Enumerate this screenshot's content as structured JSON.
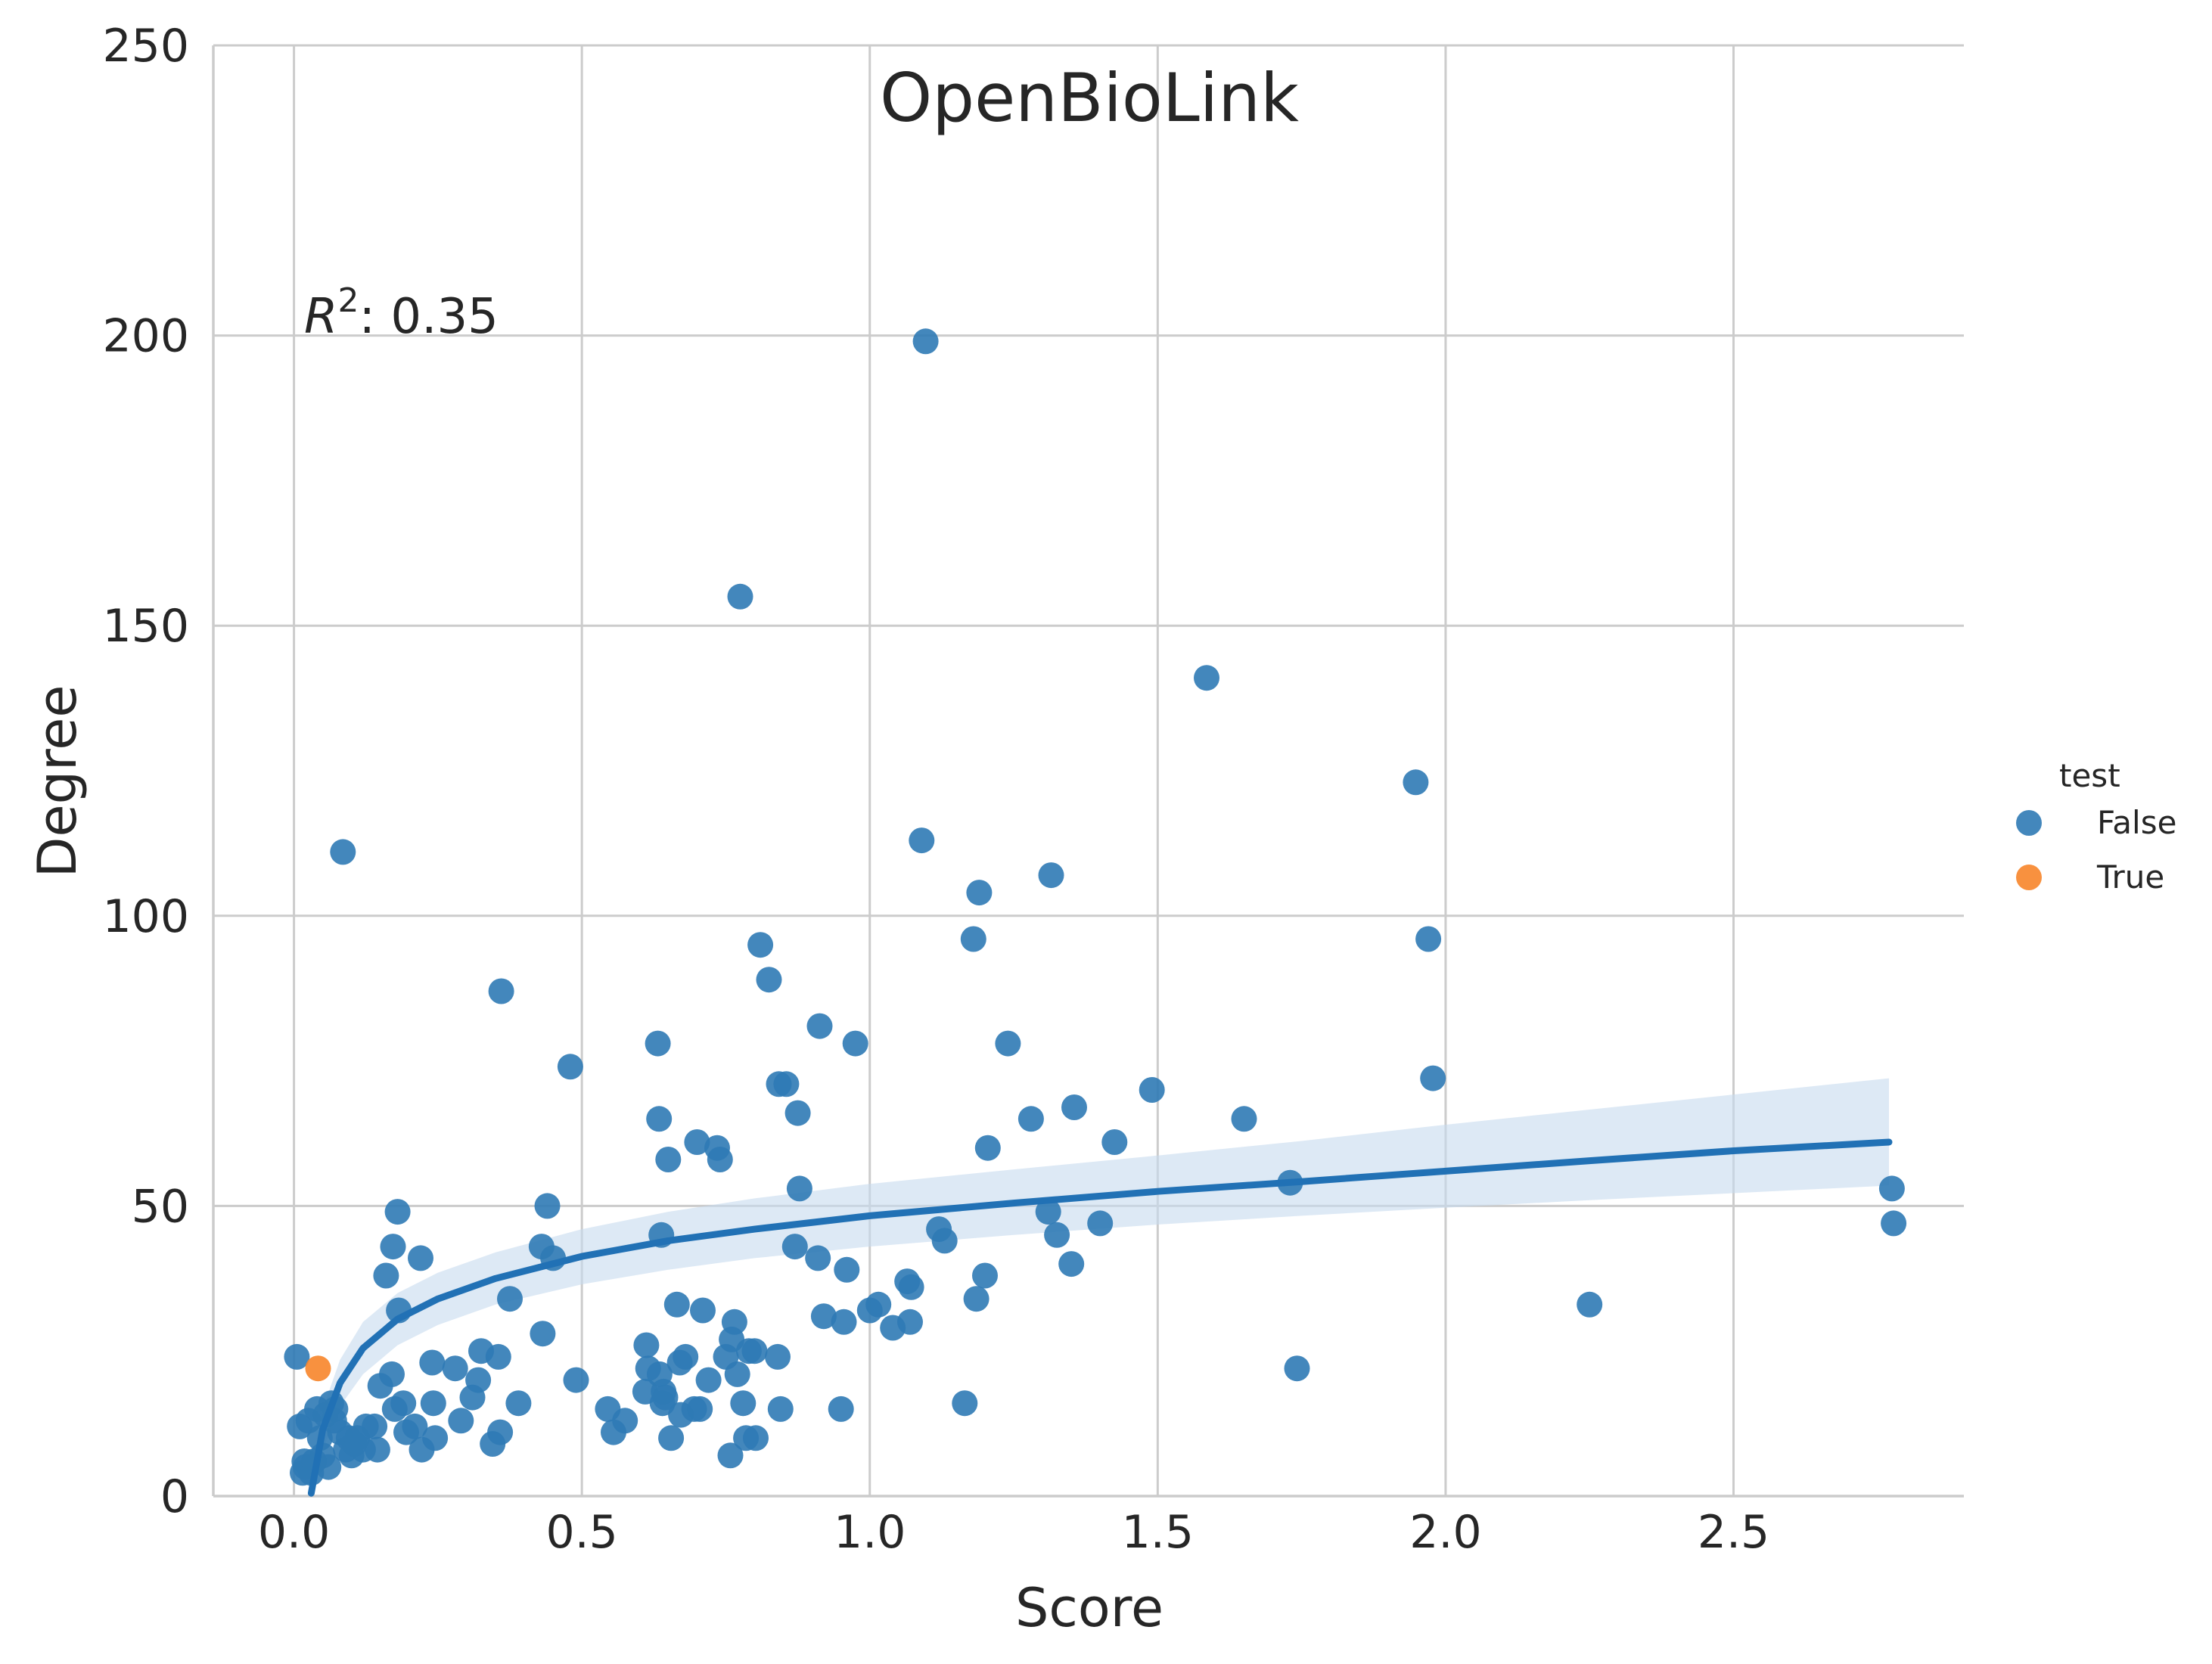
{
  "chart_data": {
    "type": "scatter",
    "title": "OpenBioLink",
    "xlabel": "Score",
    "ylabel": "Degree",
    "xlim": [
      -0.14,
      2.9
    ],
    "ylim": [
      0,
      250
    ],
    "xticks": [
      0.0,
      0.5,
      1.0,
      1.5,
      2.0,
      2.5
    ],
    "xtick_labels": [
      "0.0",
      "0.5",
      "1.0",
      "1.5",
      "2.0",
      "2.5"
    ],
    "yticks": [
      0,
      50,
      100,
      150,
      200,
      250
    ],
    "ytick_labels": [
      "0",
      "50",
      "100",
      "150",
      "200",
      "250"
    ],
    "grid": true,
    "annotation": {
      "prefix": "R",
      "exponent": "2",
      "suffix": ": 0.35"
    },
    "legend": {
      "title": "test",
      "position": "right",
      "entries": [
        "False",
        "True"
      ]
    },
    "colors": {
      "False": "#2f7ab5",
      "True": "#f7852a",
      "fit": "#2171b5",
      "ci_band": "#c6dbef"
    },
    "series": [
      {
        "name": "False",
        "points": [
          [
            0.005,
            24
          ],
          [
            0.01,
            12
          ],
          [
            0.015,
            4
          ],
          [
            0.018,
            6
          ],
          [
            0.02,
            5
          ],
          [
            0.025,
            13
          ],
          [
            0.03,
            4
          ],
          [
            0.035,
            6
          ],
          [
            0.04,
            15
          ],
          [
            0.045,
            10
          ],
          [
            0.05,
            7
          ],
          [
            0.055,
            14
          ],
          [
            0.06,
            5
          ],
          [
            0.065,
            16
          ],
          [
            0.07,
            13
          ],
          [
            0.072,
            15
          ],
          [
            0.08,
            11
          ],
          [
            0.085,
            111
          ],
          [
            0.09,
            8
          ],
          [
            0.095,
            10
          ],
          [
            0.1,
            7
          ],
          [
            0.105,
            9
          ],
          [
            0.11,
            10
          ],
          [
            0.12,
            8
          ],
          [
            0.125,
            12
          ],
          [
            0.14,
            12
          ],
          [
            0.145,
            8
          ],
          [
            0.15,
            19
          ],
          [
            0.16,
            38
          ],
          [
            0.17,
            21
          ],
          [
            0.172,
            43
          ],
          [
            0.175,
            15
          ],
          [
            0.18,
            49
          ],
          [
            0.182,
            32
          ],
          [
            0.19,
            16
          ],
          [
            0.195,
            11
          ],
          [
            0.21,
            12
          ],
          [
            0.22,
            41
          ],
          [
            0.222,
            8
          ],
          [
            0.24,
            23
          ],
          [
            0.242,
            16
          ],
          [
            0.245,
            10
          ],
          [
            0.28,
            22
          ],
          [
            0.29,
            13
          ],
          [
            0.31,
            17
          ],
          [
            0.32,
            20
          ],
          [
            0.325,
            25
          ],
          [
            0.345,
            9
          ],
          [
            0.355,
            24
          ],
          [
            0.358,
            11
          ],
          [
            0.36,
            87
          ],
          [
            0.375,
            34
          ],
          [
            0.39,
            16
          ],
          [
            0.43,
            43
          ],
          [
            0.432,
            28
          ],
          [
            0.44,
            50
          ],
          [
            0.45,
            41
          ],
          [
            0.48,
            74
          ],
          [
            0.49,
            20
          ],
          [
            0.545,
            15
          ],
          [
            0.555,
            11
          ],
          [
            0.575,
            13
          ],
          [
            0.61,
            18
          ],
          [
            0.612,
            26
          ],
          [
            0.615,
            22
          ],
          [
            0.632,
            78
          ],
          [
            0.634,
            65
          ],
          [
            0.635,
            21
          ],
          [
            0.638,
            45
          ],
          [
            0.64,
            16
          ],
          [
            0.642,
            18
          ],
          [
            0.645,
            17
          ],
          [
            0.65,
            58
          ],
          [
            0.655,
            10
          ],
          [
            0.665,
            33
          ],
          [
            0.67,
            23
          ],
          [
            0.672,
            14
          ],
          [
            0.68,
            24
          ],
          [
            0.695,
            15
          ],
          [
            0.7,
            61
          ],
          [
            0.705,
            15
          ],
          [
            0.71,
            32
          ],
          [
            0.72,
            20
          ],
          [
            0.735,
            60
          ],
          [
            0.74,
            58
          ],
          [
            0.75,
            24
          ],
          [
            0.758,
            7
          ],
          [
            0.76,
            27
          ],
          [
            0.765,
            30
          ],
          [
            0.77,
            21
          ],
          [
            0.775,
            155
          ],
          [
            0.78,
            16
          ],
          [
            0.785,
            10
          ],
          [
            0.79,
            25
          ],
          [
            0.8,
            25
          ],
          [
            0.802,
            10
          ],
          [
            0.81,
            95
          ],
          [
            0.825,
            89
          ],
          [
            0.84,
            24
          ],
          [
            0.842,
            71
          ],
          [
            0.845,
            15
          ],
          [
            0.855,
            71
          ],
          [
            0.87,
            43
          ],
          [
            0.875,
            66
          ],
          [
            0.878,
            53
          ],
          [
            0.91,
            41
          ],
          [
            0.913,
            81
          ],
          [
            0.92,
            31
          ],
          [
            0.95,
            15
          ],
          [
            0.955,
            30
          ],
          [
            0.96,
            39
          ],
          [
            0.975,
            78
          ],
          [
            1.0,
            32
          ],
          [
            1.015,
            33
          ],
          [
            1.04,
            29
          ],
          [
            1.065,
            37
          ],
          [
            1.07,
            30
          ],
          [
            1.072,
            36
          ],
          [
            1.09,
            113
          ],
          [
            1.097,
            199
          ],
          [
            1.12,
            46
          ],
          [
            1.13,
            44
          ],
          [
            1.165,
            16
          ],
          [
            1.18,
            96
          ],
          [
            1.185,
            34
          ],
          [
            1.19,
            104
          ],
          [
            1.2,
            38
          ],
          [
            1.205,
            60
          ],
          [
            1.24,
            78
          ],
          [
            1.28,
            65
          ],
          [
            1.31,
            49
          ],
          [
            1.315,
            107
          ],
          [
            1.325,
            45
          ],
          [
            1.35,
            40
          ],
          [
            1.355,
            67
          ],
          [
            1.4,
            47
          ],
          [
            1.425,
            61
          ],
          [
            1.49,
            70
          ],
          [
            1.585,
            141
          ],
          [
            1.65,
            65
          ],
          [
            1.73,
            54
          ],
          [
            1.742,
            22
          ],
          [
            1.948,
            123
          ],
          [
            1.97,
            96
          ],
          [
            1.978,
            72
          ],
          [
            2.25,
            33
          ],
          [
            2.775,
            53
          ],
          [
            2.778,
            47
          ]
        ]
      },
      {
        "name": "True",
        "points": [
          [
            0.042,
            22
          ]
        ]
      }
    ],
    "fit_curve": {
      "x": [
        0.03,
        0.05,
        0.08,
        0.12,
        0.18,
        0.25,
        0.35,
        0.5,
        0.65,
        0.8,
        1.0,
        1.25,
        1.5,
        1.75,
        2.0,
        2.25,
        2.5,
        2.77
      ],
      "y": [
        0.5,
        11.5,
        19.5,
        25.5,
        30.5,
        34.0,
        37.5,
        41.3,
        44.0,
        46.0,
        48.3,
        50.5,
        52.5,
        54.2,
        56.0,
        57.8,
        59.5,
        61.0
      ],
      "ci_lower": [
        0.0,
        8.0,
        15.5,
        21.0,
        26.0,
        29.5,
        33.0,
        36.5,
        39.0,
        41.0,
        43.0,
        45.0,
        46.8,
        48.3,
        49.7,
        51.0,
        52.2,
        53.5
      ],
      "ci_upper": [
        4.0,
        15.0,
        23.5,
        30.0,
        35.0,
        38.5,
        42.0,
        46.0,
        49.0,
        51.3,
        53.8,
        56.3,
        58.7,
        61.2,
        64.0,
        66.6,
        69.2,
        72.0
      ]
    }
  }
}
